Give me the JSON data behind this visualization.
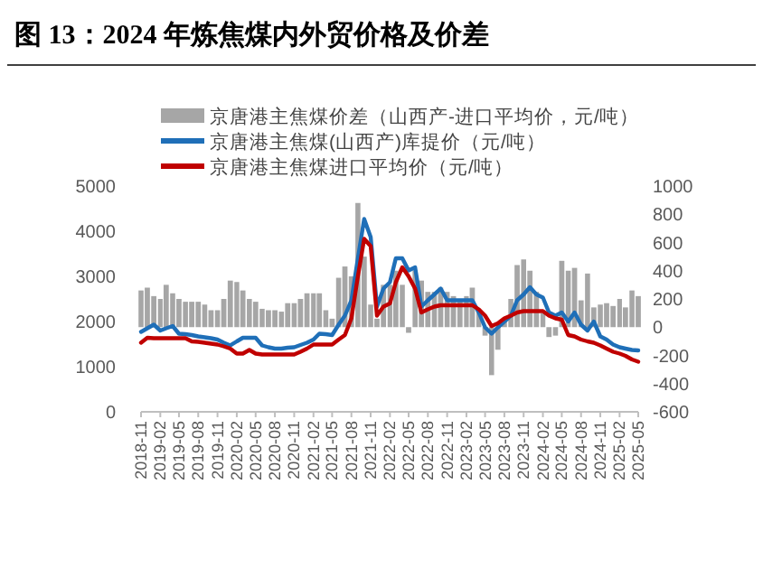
{
  "chart_data": {
    "type": "line",
    "title": "图 13：2024 年炼焦煤内外贸价格及价差",
    "legend": "top",
    "grid": false,
    "marker": "none",
    "line_style": "solid",
    "x": [
      "2018-11",
      "2018-12",
      "2019-01",
      "2019-02",
      "2019-03",
      "2019-04",
      "2019-05",
      "2019-06",
      "2019-07",
      "2019-08",
      "2019-09",
      "2019-10",
      "2019-11",
      "2019-12",
      "2020-01",
      "2020-02",
      "2020-03",
      "2020-04",
      "2020-05",
      "2020-06",
      "2020-07",
      "2020-08",
      "2020-09",
      "2020-10",
      "2020-11",
      "2020-12",
      "2021-01",
      "2021-02",
      "2021-03",
      "2021-04",
      "2021-05",
      "2021-06",
      "2021-07",
      "2021-08",
      "2021-09",
      "2021-10",
      "2021-11",
      "2021-12",
      "2022-01",
      "2022-02",
      "2022-03",
      "2022-04",
      "2022-05",
      "2022-06",
      "2022-07",
      "2022-08",
      "2022-09",
      "2022-10",
      "2022-11",
      "2022-12",
      "2023-01",
      "2023-02",
      "2023-03",
      "2023-04",
      "2023-05",
      "2023-06",
      "2023-07",
      "2023-08",
      "2023-09",
      "2023-10",
      "2023-11",
      "2023-12",
      "2024-01",
      "2024-02",
      "2024-03",
      "2024-04",
      "2024-05",
      "2024-06",
      "2024-07",
      "2024-08",
      "2024-09",
      "2024-10",
      "2024-11",
      "2024-12",
      "2025-01",
      "2025-02",
      "2025-03",
      "2025-04",
      "2025-05"
    ],
    "xlim": [
      "2018-11",
      "2025-05"
    ],
    "xticks": [
      "2018-11",
      "2019-02",
      "2019-05",
      "2019-08",
      "2019-11",
      "2020-02",
      "2020-05",
      "2020-08",
      "2020-11",
      "2021-02",
      "2021-05",
      "2021-08",
      "2021-11",
      "2022-02",
      "2022-05",
      "2022-08",
      "2022-11",
      "2023-02",
      "2023-05",
      "2023-08",
      "2023-11",
      "2024-02",
      "2024-05",
      "2024-08",
      "2024-11",
      "2025-02",
      "2025-05"
    ],
    "ylim": [
      0,
      5000
    ],
    "yticks": [
      0,
      1000,
      2000,
      3000,
      4000,
      5000
    ],
    "y2lim": [
      -600,
      1000
    ],
    "y2ticks": [
      -600,
      -400,
      -200,
      0,
      200,
      400,
      600,
      800,
      1000
    ],
    "series": [
      {
        "name": "京唐港主焦煤价差（山西产-进口平均价，元/吨）",
        "type": "bar",
        "axis": "y2",
        "color": "#a6a6a6",
        "values": [
          260,
          280,
          220,
          200,
          300,
          240,
          200,
          180,
          180,
          180,
          160,
          120,
          120,
          200,
          330,
          320,
          260,
          200,
          180,
          130,
          120,
          120,
          110,
          170,
          170,
          200,
          240,
          240,
          240,
          120,
          60,
          350,
          430,
          360,
          880,
          500,
          160,
          60,
          300,
          300,
          400,
          300,
          -40,
          400,
          330,
          250,
          250,
          280,
          250,
          220,
          200,
          220,
          280,
          120,
          -60,
          -340,
          -160,
          60,
          200,
          440,
          480,
          400,
          250,
          100,
          -70,
          -60,
          470,
          400,
          420,
          190,
          380,
          140,
          160,
          170,
          150,
          200,
          140,
          260,
          220
        ]
      },
      {
        "name": "京唐港主焦煤(山西产)库提价（元/吨）",
        "color": "#1f6fb8",
        "values": [
          1770,
          1850,
          1930,
          1800,
          1850,
          1900,
          1730,
          1720,
          1700,
          1670,
          1650,
          1630,
          1600,
          1530,
          1470,
          1560,
          1640,
          1640,
          1640,
          1470,
          1430,
          1400,
          1400,
          1420,
          1430,
          1480,
          1530,
          1600,
          1730,
          1720,
          1700,
          1930,
          2130,
          2470,
          3400,
          4270,
          3870,
          2330,
          2730,
          2870,
          3400,
          3400,
          3130,
          3200,
          2330,
          2470,
          2600,
          2730,
          2470,
          2470,
          2470,
          2470,
          2470,
          2200,
          1870,
          1730,
          1870,
          2000,
          2130,
          2470,
          2600,
          2760,
          2600,
          2530,
          2200,
          2130,
          2200,
          2000,
          2200,
          1930,
          1800,
          2000,
          1670,
          1600,
          1490,
          1430,
          1400,
          1370,
          1360
        ]
      },
      {
        "name": "京唐港主焦煤进口平均价（元/吨）",
        "color": "#c00000",
        "values": [
          1530,
          1640,
          1630,
          1630,
          1630,
          1630,
          1630,
          1630,
          1560,
          1550,
          1530,
          1510,
          1490,
          1450,
          1400,
          1290,
          1290,
          1370,
          1290,
          1270,
          1270,
          1270,
          1270,
          1270,
          1270,
          1330,
          1400,
          1490,
          1490,
          1490,
          1490,
          1600,
          1700,
          2070,
          3000,
          3830,
          3670,
          2130,
          2330,
          2400,
          2870,
          3200,
          3000,
          2730,
          2200,
          2270,
          2330,
          2360,
          2360,
          2360,
          2360,
          2360,
          2360,
          2270,
          2130,
          1900,
          1960,
          2070,
          2130,
          2200,
          2230,
          2230,
          2230,
          2230,
          2130,
          2070,
          2040,
          1700,
          1670,
          1600,
          1560,
          1530,
          1470,
          1400,
          1330,
          1290,
          1240,
          1160,
          1110
        ]
      }
    ]
  }
}
